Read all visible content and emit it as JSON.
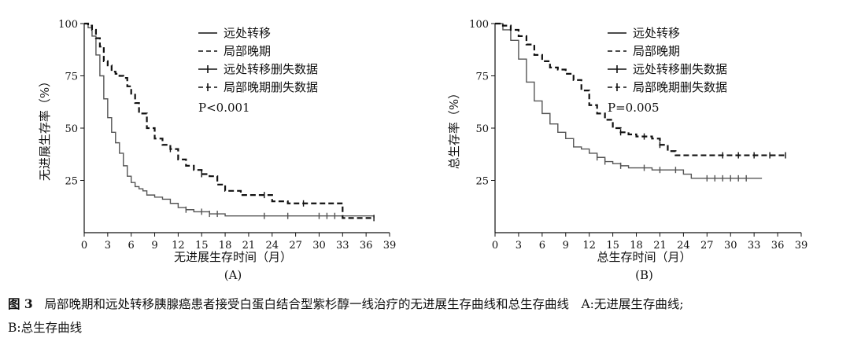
{
  "caption": {
    "label": "图 3",
    "text": "局部晚期和远处转移胰腺癌患者接受白蛋白结合型紫杉醇一线治疗的无进展生存曲线和总生存曲线　A:无进展生存曲线;",
    "text2": "B:总生存曲线"
  },
  "chart_data": [
    {
      "type": "line",
      "panel_label": "(A)",
      "xlabel": "无进展生存时间（月）",
      "ylabel": "无进展生存率（%）",
      "xlim": [
        0,
        39
      ],
      "ylim": [
        0,
        100
      ],
      "xticks": [
        "0",
        "3",
        "6",
        "9",
        "12",
        "15",
        "18",
        "21",
        "24",
        "27",
        "30",
        "33",
        "36",
        "39"
      ],
      "yticks": [
        "25",
        "50",
        "75",
        "100"
      ],
      "legend": [
        "远处转移",
        "局部晚期",
        "远处转移删失数据",
        "局部晚期删失数据"
      ],
      "legend_position": "top-right",
      "annotation": "P<0.001",
      "series": [
        {
          "name": "远处转移",
          "style": "solid",
          "x": [
            0,
            0.5,
            1,
            1.5,
            2,
            2.5,
            3,
            3.5,
            4,
            4.5,
            5,
            5.5,
            6,
            6.5,
            7,
            7.5,
            8,
            9,
            10,
            11,
            12,
            13,
            14,
            16,
            18,
            22,
            27,
            33,
            37
          ],
          "y": [
            100,
            98,
            94,
            85,
            75,
            64,
            55,
            48,
            43,
            38,
            32,
            27,
            24,
            22,
            21,
            20,
            18,
            17,
            16,
            14,
            12,
            11,
            10,
            9,
            8,
            8,
            8,
            8,
            7
          ],
          "censored_x": [
            13,
            15,
            16,
            17,
            23,
            26,
            30,
            31,
            32
          ]
        },
        {
          "name": "局部晚期",
          "style": "dashed",
          "x": [
            0,
            0.5,
            1,
            1.5,
            2,
            2.5,
            3,
            3.5,
            4,
            4.5,
            5,
            5.5,
            6,
            6.5,
            7,
            8,
            9,
            10,
            11,
            12,
            13,
            14,
            15,
            16,
            17,
            18,
            20,
            22,
            24,
            26,
            28,
            30,
            33,
            37
          ],
          "y": [
            100,
            99,
            97,
            93,
            89,
            82,
            80,
            77,
            76,
            75,
            74,
            70,
            66,
            62,
            57,
            50,
            45,
            42,
            40,
            35,
            32,
            30,
            28,
            27,
            23,
            20,
            18,
            18,
            15,
            14,
            14,
            14,
            7,
            7
          ],
          "censored_x": [
            11,
            15,
            23,
            28,
            37
          ]
        }
      ]
    },
    {
      "type": "line",
      "panel_label": "(B)",
      "xlabel": "总生存时间（月）",
      "ylabel": "总生存率（%）",
      "xlim": [
        0,
        39
      ],
      "ylim": [
        0,
        100
      ],
      "xticks": [
        "0",
        "3",
        "6",
        "9",
        "12",
        "15",
        "18",
        "21",
        "24",
        "27",
        "30",
        "33",
        "36",
        "39"
      ],
      "yticks": [
        "25",
        "50",
        "75",
        "100"
      ],
      "legend": [
        "远处转移",
        "局部晚期",
        "远处转移删失数据",
        "局部晚期删失数据"
      ],
      "legend_position": "top-right",
      "annotation": "P=0.005",
      "series": [
        {
          "name": "远处转移",
          "style": "solid",
          "x": [
            0,
            1,
            2,
            3,
            4,
            5,
            6,
            7,
            8,
            9,
            10,
            11,
            12,
            13,
            14,
            15,
            16,
            17,
            18,
            20,
            22,
            24,
            25,
            27,
            30,
            34
          ],
          "y": [
            100,
            97,
            92,
            83,
            72,
            63,
            57,
            52,
            48,
            45,
            41,
            40,
            38,
            36,
            34,
            33,
            32,
            31,
            31,
            30,
            30,
            28,
            26,
            26,
            26,
            26
          ],
          "censored_x": [
            13,
            14,
            16,
            19,
            21,
            23,
            27,
            28,
            29,
            30,
            31,
            32
          ]
        },
        {
          "name": "局部晚期",
          "style": "dashed",
          "x": [
            0,
            1,
            2,
            3,
            4,
            5,
            6,
            7,
            8,
            9,
            10,
            11,
            12,
            13,
            14,
            15,
            16,
            17,
            18,
            20,
            21,
            22,
            23,
            24,
            28,
            33,
            37
          ],
          "y": [
            100,
            99,
            97,
            94,
            90,
            85,
            82,
            79,
            78,
            76,
            73,
            68,
            61,
            57,
            54,
            50,
            48,
            47,
            46,
            45,
            42,
            39,
            37,
            37,
            37,
            37,
            37
          ],
          "censored_x": [
            16,
            19,
            21,
            29,
            31,
            33,
            35,
            37
          ]
        }
      ]
    }
  ]
}
